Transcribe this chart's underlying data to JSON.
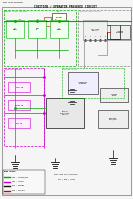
{
  "bg_color": "#f5f5f5",
  "title": "IGNITION / OPERATOR PRESENCE CIRCUIT",
  "line_color_green": "#00aa00",
  "line_color_magenta": "#cc00cc",
  "line_color_gray": "#888888",
  "line_color_black": "#111111",
  "line_color_red": "#cc0000",
  "line_color_blue": "#0000cc"
}
